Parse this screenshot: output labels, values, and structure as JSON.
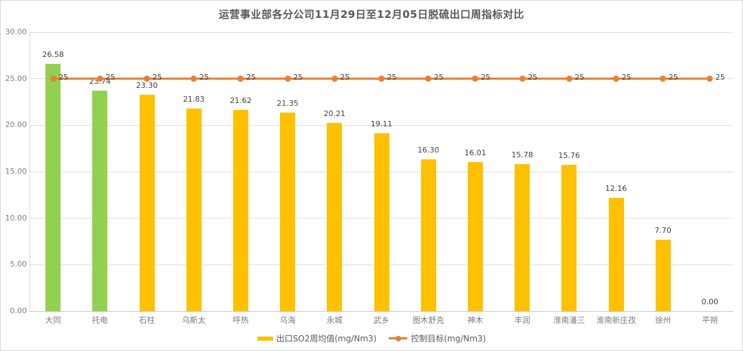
{
  "chart_data": {
    "type": "bar",
    "title": "运营事业部各分公司11月29日至12月05日脱硫出口周指标对比",
    "categories": [
      "大同",
      "托电",
      "石柱",
      "乌斯太",
      "呼热",
      "乌海",
      "永城",
      "武乡",
      "图木舒克",
      "神木",
      "丰润",
      "淮南潘三",
      "淮南新庄孜",
      "徐州",
      "平朔"
    ],
    "series": [
      {
        "name": "出口SO2周均值(mg/Nm3)",
        "type": "bar",
        "values": [
          26.58,
          23.74,
          23.3,
          21.83,
          21.62,
          21.35,
          20.21,
          19.11,
          16.3,
          16.01,
          15.78,
          15.76,
          12.16,
          7.7,
          0.0
        ]
      },
      {
        "name": "控制目标(mg/Nm3)",
        "type": "line",
        "values": [
          25,
          25,
          25,
          25,
          25,
          25,
          25,
          25,
          25,
          25,
          25,
          25,
          25,
          25,
          25
        ]
      }
    ],
    "value_label_format": "0.00",
    "target_label_format": "0",
    "ylabel": "",
    "xlabel": "",
    "ylim": [
      0,
      30
    ],
    "yticks": [
      0,
      5,
      10,
      15,
      20,
      25,
      30
    ],
    "ytick_format": "0.00",
    "grid": true,
    "legend_position": "bottom",
    "legend": [
      "出口SO2周均值(mg/Nm3)",
      "控制目标(mg/Nm3)"
    ],
    "colors": {
      "bar_default": "#FFC000",
      "bar_highlight": "#92D050",
      "highlight_indices": [
        0,
        1
      ],
      "target_line": "#ED7D31",
      "title_text": "#595959",
      "value_label_text": "#404040",
      "axis_text": "#808080",
      "gridline": "#DEDEDE"
    }
  }
}
